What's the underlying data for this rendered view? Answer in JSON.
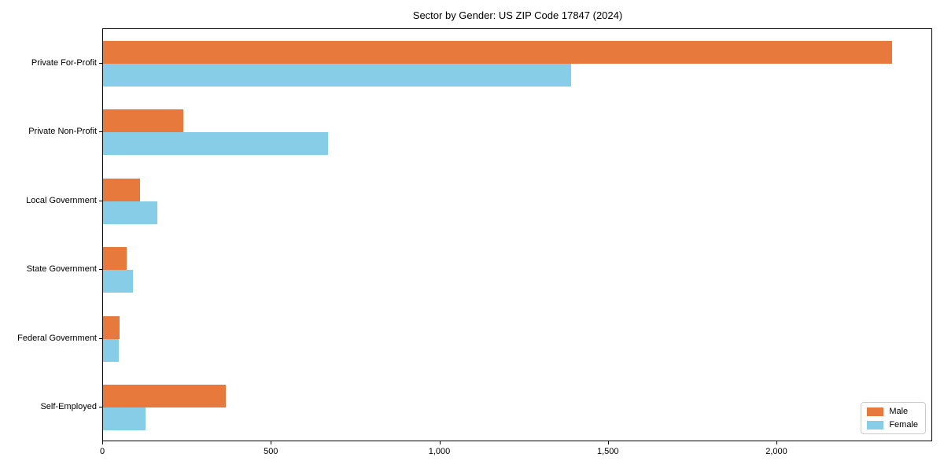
{
  "title": "Sector by Gender: US ZIP Code 17847 (2024)",
  "colors": {
    "male": "#E8793C",
    "female": "#87CDE8",
    "axis": "#000000",
    "legend_border": "#CCCCCC",
    "background": "#FFFFFF"
  },
  "chart_data": {
    "type": "bar",
    "orientation": "horizontal",
    "title": "Sector by Gender: US ZIP Code 17847 (2024)",
    "categories": [
      "Private For-Profit",
      "Private Non-Profit",
      "Local Government",
      "State Government",
      "Federal Government",
      "Self-Employed"
    ],
    "series": [
      {
        "name": "Male",
        "color": "#E8793C",
        "values": [
          2345,
          239,
          109,
          71,
          49,
          364
        ]
      },
      {
        "name": "Female",
        "color": "#87CDE8",
        "values": [
          1392,
          668,
          162,
          89,
          46,
          127
        ]
      }
    ],
    "xlabel": "",
    "ylabel": "",
    "xlim": [
      0,
      2462
    ],
    "x_ticks": [
      {
        "value": 0,
        "label": "0"
      },
      {
        "value": 500,
        "label": "500"
      },
      {
        "value": 1000,
        "label": "1,000"
      },
      {
        "value": 1500,
        "label": "1,500"
      },
      {
        "value": 2000,
        "label": "2,000"
      }
    ],
    "grid": false,
    "legend_position": "lower right"
  }
}
